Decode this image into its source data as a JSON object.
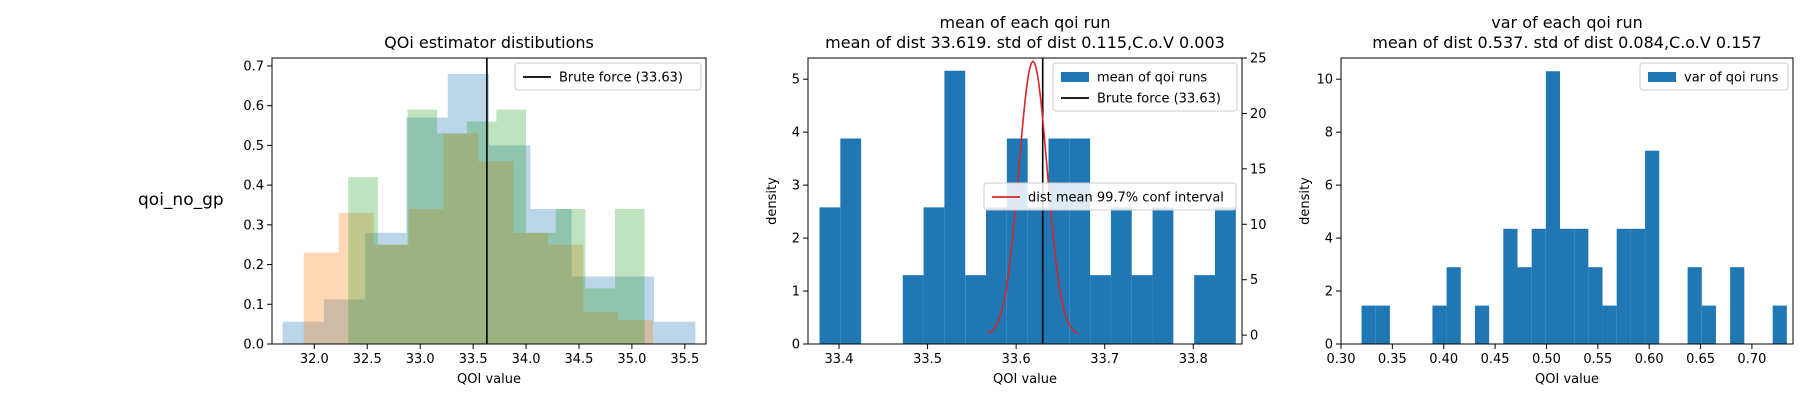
{
  "row_label": "qoi_no_gp",
  "colors": {
    "blue": "#1f77b4",
    "orange": "#ff7f0e",
    "green": "#2ca02c",
    "red": "#d62728",
    "black": "#000000"
  },
  "chart_data": [
    {
      "type": "bar",
      "histtype": "overlapping-step-filled",
      "title": "QOi estimator distibutions",
      "xlabel": "QOI value",
      "ylabel": "",
      "xlim": [
        31.6,
        35.7
      ],
      "ylim": [
        0,
        0.72
      ],
      "xticks": [
        32.0,
        32.5,
        33.0,
        33.5,
        34.0,
        34.5,
        35.0,
        35.5
      ],
      "yticks": [
        0.0,
        0.1,
        0.2,
        0.3,
        0.4,
        0.5,
        0.6,
        0.7
      ],
      "series": [
        {
          "color": "blue",
          "alpha": 0.3,
          "edges": [
            31.7,
            32.09,
            32.48,
            32.87,
            33.26,
            33.65,
            34.04,
            34.43,
            34.82,
            35.21,
            35.6
          ],
          "values": [
            0.056,
            0.112,
            0.28,
            0.57,
            0.68,
            0.5,
            0.34,
            0.17,
            0.17,
            0.056
          ]
        },
        {
          "color": "orange",
          "alpha": 0.3,
          "edges": [
            31.9,
            32.23,
            32.56,
            32.89,
            33.22,
            33.55,
            33.88,
            34.21,
            34.54,
            34.87,
            35.2
          ],
          "values": [
            0.23,
            0.33,
            0.25,
            0.34,
            0.53,
            0.46,
            0.28,
            0.25,
            0.08,
            0.06
          ]
        },
        {
          "color": "green",
          "alpha": 0.3,
          "edges": [
            32.32,
            32.6,
            32.88,
            33.16,
            33.44,
            33.72,
            34.0,
            34.28,
            34.56,
            34.84,
            35.12
          ],
          "values": [
            0.42,
            0.25,
            0.59,
            0.53,
            0.56,
            0.59,
            0.28,
            0.34,
            0.14,
            0.34
          ]
        }
      ],
      "vlines": [
        {
          "x": 33.63,
          "color": "black"
        }
      ],
      "legend": {
        "position": "upper-right",
        "entries": [
          {
            "label": "Brute force (33.63)",
            "kind": "line",
            "color": "black"
          }
        ]
      }
    },
    {
      "type": "bar",
      "histtype": "bar",
      "title": "mean of each qoi run",
      "subtitle": "mean of dist 33.619. std of dist 0.115,C.o.V 0.003",
      "xlabel": "QOI value",
      "ylabel": "density",
      "xlim": [
        33.365,
        33.855
      ],
      "ylim": [
        0,
        5.4
      ],
      "xticks": [
        33.4,
        33.5,
        33.6,
        33.7,
        33.8
      ],
      "yticks": [
        0,
        1,
        2,
        3,
        4,
        5
      ],
      "series": [
        {
          "name": "mean of qoi runs",
          "color": "blue",
          "alpha": 1.0,
          "edges": [
            33.378,
            33.4015,
            33.425,
            33.4485,
            33.472,
            33.4955,
            33.519,
            33.5425,
            33.566,
            33.5895,
            33.613,
            33.6365,
            33.66,
            33.6835,
            33.707,
            33.7305,
            33.754,
            33.7775,
            33.801,
            33.8245,
            33.848
          ],
          "values": [
            2.58,
            3.88,
            0,
            0,
            1.3,
            2.58,
            5.16,
            1.3,
            2.58,
            3.88,
            2.58,
            3.88,
            3.88,
            1.3,
            2.58,
            1.3,
            2.58,
            0,
            1.3,
            2.58
          ]
        }
      ],
      "vlines": [
        {
          "x": 33.63,
          "color": "black"
        }
      ],
      "secondary_axis": {
        "ylim": [
          -0.8,
          25
        ],
        "yticks": [
          0,
          5,
          10,
          15,
          20,
          25
        ],
        "curve": {
          "name": "dist mean 99.7% conf interval",
          "color": "red",
          "type": "normal-pdf",
          "mean": 33.619,
          "sd": 0.016,
          "x_range": [
            33.568,
            33.67
          ],
          "peak": 24.7
        }
      },
      "legend": {
        "position": "upper-right",
        "entries": [
          {
            "label": "mean of qoi runs",
            "kind": "patch",
            "color": "blue"
          },
          {
            "label": "Brute force (33.63)",
            "kind": "line",
            "color": "black"
          }
        ]
      },
      "legend2": {
        "position": "center-right",
        "entries": [
          {
            "label": "dist mean 99.7% conf interval",
            "kind": "line",
            "color": "red"
          }
        ]
      }
    },
    {
      "type": "bar",
      "histtype": "bar",
      "title": "var of each qoi run",
      "subtitle": "mean of dist 0.537. std of dist 0.084,C.o.V 0.157",
      "xlabel": "QOI value",
      "ylabel": "density",
      "xlim": [
        0.3,
        0.74
      ],
      "ylim": [
        0,
        10.8
      ],
      "xticks": [
        0.3,
        0.35,
        0.4,
        0.45,
        0.5,
        0.55,
        0.6,
        0.65,
        0.7
      ],
      "yticks": [
        0,
        2,
        4,
        6,
        8,
        10
      ],
      "series": [
        {
          "name": "var of qoi runs",
          "color": "blue",
          "alpha": 1.0,
          "edges": [
            0.32,
            0.3338,
            0.3476,
            0.3614,
            0.3752,
            0.389,
            0.4028,
            0.4166,
            0.4304,
            0.4442,
            0.458,
            0.4718,
            0.4856,
            0.4994,
            0.5132,
            0.527,
            0.5408,
            0.5546,
            0.5684,
            0.5822,
            0.596,
            0.6098,
            0.6236,
            0.6374,
            0.6512,
            0.665,
            0.6788,
            0.6926,
            0.7064,
            0.7202,
            0.734
          ],
          "values": [
            1.45,
            1.45,
            0,
            0,
            0,
            1.45,
            2.9,
            0,
            1.45,
            0,
            4.35,
            2.9,
            4.35,
            10.3,
            4.35,
            4.35,
            2.9,
            1.45,
            4.35,
            4.35,
            7.3,
            0,
            0,
            2.9,
            1.45,
            0,
            2.9,
            0,
            0,
            1.45
          ]
        }
      ],
      "vlines": [],
      "legend": {
        "position": "upper-right",
        "entries": [
          {
            "label": "var of qoi runs",
            "kind": "patch",
            "color": "blue"
          }
        ]
      }
    }
  ]
}
